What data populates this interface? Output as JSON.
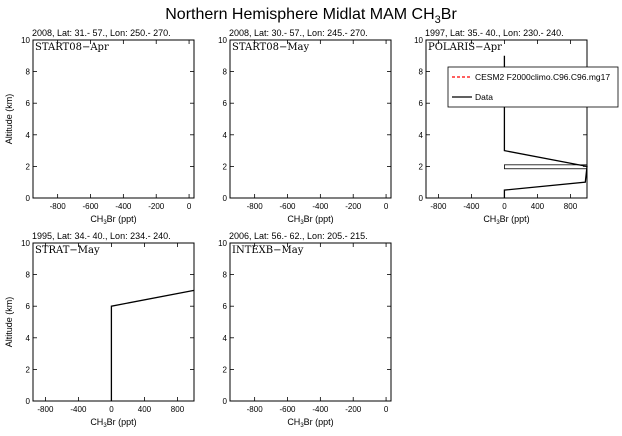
{
  "figure": {
    "title_main": "Northern Hemisphere Midlat MAM CH",
    "title_sub": "3",
    "title_tail": "Br"
  },
  "chart_data": [
    {
      "type": "line",
      "id": "start08-apr",
      "info": "2008, Lat:  31.- 57., Lon: 250.- 270.",
      "campaign": "START08−Apr",
      "xlabel_main": "CH",
      "xlabel_sub": "3",
      "xlabel_tail": "Br (ppt)",
      "ylabel": "Altitude (km)",
      "xlim": [
        -950,
        30
      ],
      "ylim": [
        0,
        10
      ],
      "xticks": [
        -800,
        -600,
        -400,
        -200,
        0
      ],
      "xtick_labels": [
        "-800",
        "-600",
        "-400",
        "-200",
        "0"
      ],
      "yticks": [
        0,
        2,
        4,
        6,
        8,
        10
      ],
      "ytick_labels": [
        "0",
        "2",
        "4",
        "6",
        "8",
        "10"
      ],
      "show_ylabel": true,
      "series": [],
      "box": null,
      "legend": null
    },
    {
      "type": "line",
      "id": "start08-may",
      "info": "2008, Lat:  30.- 57., Lon: 245.- 270.",
      "campaign": "START08−May",
      "xlabel_main": "CH",
      "xlabel_sub": "3",
      "xlabel_tail": "Br (ppt)",
      "ylabel": "",
      "xlim": [
        -950,
        30
      ],
      "ylim": [
        0,
        10
      ],
      "xticks": [
        -800,
        -600,
        -400,
        -200,
        0
      ],
      "xtick_labels": [
        "-800",
        "-600",
        "-400",
        "-200",
        "0"
      ],
      "yticks": [
        0,
        2,
        4,
        6,
        8,
        10
      ],
      "ytick_labels": [
        "0",
        "2",
        "4",
        "6",
        "8",
        "10"
      ],
      "show_ylabel": false,
      "series": [],
      "box": null,
      "legend": null
    },
    {
      "type": "line",
      "id": "polaris-apr",
      "info": "1997, Lat:  35.- 40., Lon: 230.- 240.",
      "campaign": "POLARIS−Apr",
      "xlabel_main": "CH",
      "xlabel_sub": "3",
      "xlabel_tail": "Br (ppt)",
      "ylabel": "",
      "xlim": [
        -950,
        1000
      ],
      "ylim": [
        0,
        10
      ],
      "xticks": [
        -800,
        -400,
        0,
        400,
        800
      ],
      "xtick_labels": [
        "-800",
        "-400",
        "0",
        "400",
        "800"
      ],
      "yticks": [
        0,
        2,
        4,
        6,
        8,
        10
      ],
      "ytick_labels": [
        "0",
        "2",
        "4",
        "6",
        "8",
        "10"
      ],
      "show_ylabel": false,
      "series": [
        {
          "name": "Data",
          "color": "#000000",
          "points": [
            [
              0,
              9
            ],
            [
              0,
              3
            ],
            [
              1000,
              2
            ],
            [
              980,
              1
            ],
            [
              0,
              0.5
            ],
            [
              0,
              0
            ]
          ]
        }
      ],
      "box": {
        "x0": 0,
        "x1": 1000,
        "y0": 1.85,
        "y1": 2.1
      },
      "legend": {
        "entries": [
          {
            "label": "CESM2 F2000climo.C96.C96.mg17",
            "color": "#ff0000",
            "dash": true
          },
          {
            "label": "Data",
            "color": "#000000",
            "dash": false
          }
        ]
      }
    },
    {
      "type": "line",
      "id": "strat-may",
      "info": "1995, Lat:  34.- 40., Lon: 234.- 240.",
      "campaign": "STRAT−May",
      "xlabel_main": "CH",
      "xlabel_sub": "3",
      "xlabel_tail": "Br (ppt)",
      "ylabel": "Altitude (km)",
      "xlim": [
        -950,
        1000
      ],
      "ylim": [
        0,
        10
      ],
      "xticks": [
        -800,
        -400,
        0,
        400,
        800
      ],
      "xtick_labels": [
        "-800",
        "-400",
        "0",
        "400",
        "800"
      ],
      "yticks": [
        0,
        2,
        4,
        6,
        8,
        10
      ],
      "ytick_labels": [
        "0",
        "2",
        "4",
        "6",
        "8",
        "10"
      ],
      "show_ylabel": true,
      "series": [
        {
          "name": "Data",
          "color": "#000000",
          "points": [
            [
              0,
              0
            ],
            [
              0,
              6
            ],
            [
              1000,
              7
            ]
          ]
        }
      ],
      "box": null,
      "legend": null
    },
    {
      "type": "line",
      "id": "intexb-may",
      "info": "2006, Lat:  56.- 62., Lon: 205.- 215.",
      "campaign": "INTEXB−May",
      "xlabel_main": "CH",
      "xlabel_sub": "3",
      "xlabel_tail": "Br (ppt)",
      "ylabel": "",
      "xlim": [
        -950,
        30
      ],
      "ylim": [
        0,
        10
      ],
      "xticks": [
        -800,
        -600,
        -400,
        -200,
        0
      ],
      "xtick_labels": [
        "-800",
        "-600",
        "-400",
        "-200",
        "0"
      ],
      "yticks": [
        0,
        2,
        4,
        6,
        8,
        10
      ],
      "ytick_labels": [
        "0",
        "2",
        "4",
        "6",
        "8",
        "10"
      ],
      "show_ylabel": false,
      "series": [],
      "box": null,
      "legend": null
    }
  ]
}
